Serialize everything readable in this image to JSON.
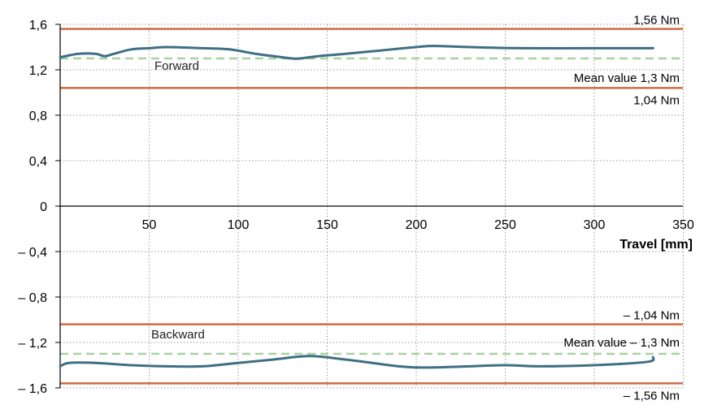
{
  "chart_data": {
    "type": "line",
    "xlabel": "Travel [mm]",
    "ylabel": "",
    "xlim": [
      0,
      350
    ],
    "ylim": [
      -1.6,
      1.6
    ],
    "x_ticks": [
      50,
      100,
      150,
      200,
      250,
      300,
      350
    ],
    "x_tick_labels": [
      "50",
      "100",
      "150",
      "200",
      "250",
      "300",
      "350"
    ],
    "y_ticks": [
      1.6,
      1.2,
      0.8,
      0.4,
      0,
      -0.4,
      -0.8,
      -1.2,
      -1.6
    ],
    "y_tick_labels": [
      "1,6",
      "1,2",
      "0,8",
      "0,4",
      "0",
      "– 0,4",
      "– 0,8",
      "– 1,2",
      "– 1,6"
    ],
    "grid": true,
    "colors": {
      "series": "#3e6f84",
      "limit": "#cf6a43",
      "mean": "#a8d2a0",
      "grid": "#9a9a9a",
      "axis": "#000000"
    },
    "series": [
      {
        "name": "Forward",
        "x": [
          0,
          10,
          20,
          25,
          30,
          40,
          50,
          60,
          80,
          95,
          110,
          120,
          130,
          135,
          145,
          160,
          180,
          200,
          210,
          230,
          260,
          300,
          333
        ],
        "y": [
          1.31,
          1.34,
          1.34,
          1.32,
          1.34,
          1.38,
          1.39,
          1.4,
          1.39,
          1.38,
          1.34,
          1.32,
          1.3,
          1.3,
          1.32,
          1.34,
          1.37,
          1.4,
          1.41,
          1.4,
          1.39,
          1.39,
          1.39
        ]
      },
      {
        "name": "Backward",
        "x": [
          0,
          5,
          20,
          40,
          60,
          80,
          100,
          120,
          140,
          160,
          180,
          190,
          200,
          210,
          230,
          250,
          270,
          300,
          330,
          333
        ],
        "y": [
          -1.41,
          -1.38,
          -1.38,
          -1.4,
          -1.41,
          -1.41,
          -1.38,
          -1.35,
          -1.32,
          -1.35,
          -1.39,
          -1.41,
          -1.42,
          -1.42,
          -1.41,
          -1.4,
          -1.41,
          -1.4,
          -1.37,
          -1.33
        ]
      }
    ],
    "limit_lines": [
      {
        "value": 1.56,
        "label": "1,56 Nm"
      },
      {
        "value": 1.04,
        "label": "1,04 Nm"
      },
      {
        "value": -1.04,
        "label": "– 1,04 Nm"
      },
      {
        "value": -1.56,
        "label": "– 1,56 Nm"
      }
    ],
    "mean_lines": [
      {
        "value": 1.3,
        "label": "Mean value 1,3 Nm"
      },
      {
        "value": -1.3,
        "label": "Mean value – 1,3 Nm"
      }
    ],
    "series_labels": [
      {
        "text": "Forward"
      },
      {
        "text": "Backward"
      }
    ]
  }
}
